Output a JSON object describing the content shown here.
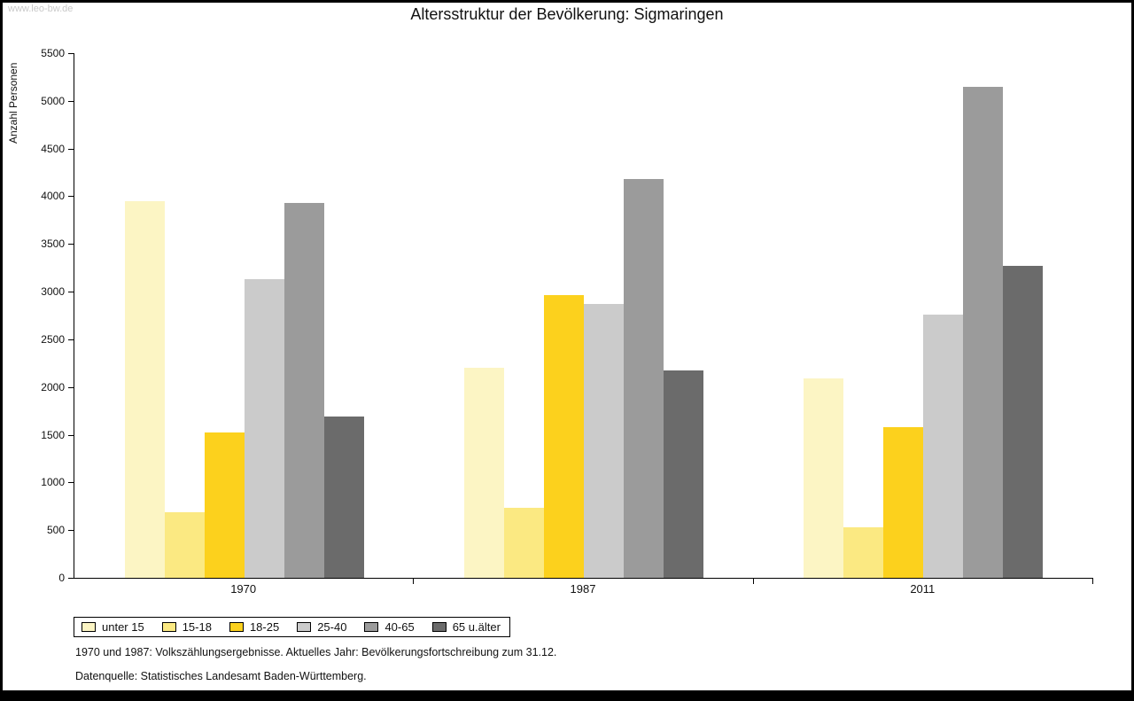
{
  "watermark": "www.leo-bw.de",
  "chart_data": {
    "type": "bar",
    "title": "Altersstruktur der Bevölkerung: Sigmaringen",
    "ylabel": "Anzahl Personen",
    "xlabel": "",
    "ylim": [
      0,
      5500
    ],
    "ytick_step": 500,
    "grid": false,
    "legend_position": "bottom-left",
    "categories": [
      "1970",
      "1987",
      "2011"
    ],
    "series": [
      {
        "name": "unter 15",
        "color": "#FCF5C4",
        "values": [
          3950,
          2200,
          2090
        ]
      },
      {
        "name": "15-18",
        "color": "#FBE982",
        "values": [
          690,
          730,
          530
        ]
      },
      {
        "name": "18-25",
        "color": "#FCD11D",
        "values": [
          1520,
          2960,
          1580
        ]
      },
      {
        "name": "25-40",
        "color": "#CBCBCB",
        "values": [
          3130,
          2870,
          2760
        ]
      },
      {
        "name": "40-65",
        "color": "#9B9B9B",
        "values": [
          3930,
          4180,
          5150
        ]
      },
      {
        "name": "65 u.älter",
        "color": "#6B6B6B",
        "values": [
          1690,
          2170,
          3270
        ]
      }
    ]
  },
  "footnotes": [
    "1970 und 1987: Volkszählungsergebnisse. Aktuelles Jahr: Bevölkerungsfortschreibung zum 31.12.",
    "Datenquelle: Statistisches Landesamt Baden-Württemberg."
  ]
}
